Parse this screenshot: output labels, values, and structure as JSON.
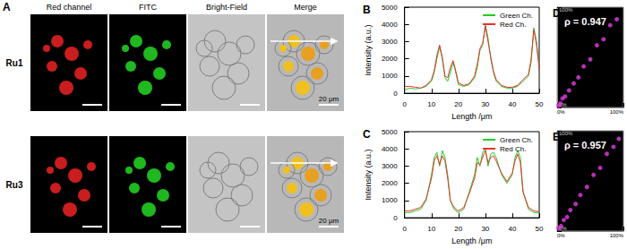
{
  "panel_a": {
    "label": "A",
    "columns": [
      "Red channel",
      "FITC",
      "Bright-Field",
      "Merge"
    ],
    "rows": [
      "Ru1",
      "Ru3"
    ],
    "scale_bar": "20 μm"
  },
  "chart_data": [
    {
      "type": "line",
      "title": "B",
      "x_label": "Length /μm",
      "y_label": "Intensity (a.u.)",
      "x": [
        0,
        2,
        4,
        6,
        8,
        10,
        11,
        12,
        13,
        14,
        15,
        16,
        17,
        18,
        19,
        20,
        22,
        24,
        26,
        27,
        28,
        29,
        30,
        31,
        32,
        33,
        34,
        36,
        38,
        40,
        42,
        44,
        46,
        47,
        48,
        49,
        50
      ],
      "series": [
        {
          "name": "Green Ch.",
          "color": "#22cc22",
          "values": [
            200,
            300,
            250,
            300,
            400,
            700,
            1200,
            2000,
            2700,
            2000,
            900,
            700,
            1200,
            1800,
            1200,
            500,
            400,
            500,
            900,
            1500,
            2500,
            2800,
            4000,
            3200,
            2000,
            1200,
            700,
            400,
            300,
            300,
            400,
            700,
            1000,
            1800,
            3800,
            3000,
            1500
          ]
        },
        {
          "name": "Red Ch.",
          "color": "#e83030",
          "values": [
            400,
            400,
            350,
            300,
            450,
            800,
            1300,
            2200,
            2800,
            2100,
            1000,
            900,
            1500,
            1900,
            1300,
            600,
            450,
            550,
            1000,
            1700,
            2600,
            2900,
            3900,
            3000,
            2100,
            1300,
            800,
            450,
            350,
            350,
            450,
            800,
            1100,
            2000,
            3700,
            2800,
            1400
          ]
        }
      ],
      "xlim": [
        0,
        50
      ],
      "xticks": [
        0,
        10,
        20,
        30,
        40,
        50
      ],
      "ylim": [
        0,
        5000
      ],
      "yticks": [
        0,
        1000,
        2000,
        3000,
        4000,
        5000
      ],
      "legend": "upper right"
    },
    {
      "type": "line",
      "title": "C",
      "x_label": "Length /μm",
      "y_label": "Intensity (a.u.)",
      "x": [
        0,
        2,
        4,
        6,
        8,
        10,
        11,
        12,
        13,
        14,
        15,
        16,
        17,
        18,
        19,
        20,
        22,
        24,
        26,
        27,
        28,
        29,
        30,
        31,
        32,
        33,
        34,
        36,
        38,
        40,
        41,
        42,
        43,
        44,
        46,
        48,
        50
      ],
      "series": [
        {
          "name": "Green Ch.",
          "color": "#22cc22",
          "values": [
            300,
            300,
            400,
            500,
            1000,
            2500,
            3500,
            3800,
            3000,
            3900,
            3500,
            2500,
            1000,
            600,
            400,
            300,
            500,
            1500,
            2500,
            3500,
            3000,
            3800,
            4000,
            3000,
            3700,
            3800,
            3500,
            2500,
            2000,
            2500,
            3500,
            3900,
            3500,
            1500,
            500,
            300,
            300
          ]
        },
        {
          "name": "Red Ch.",
          "color": "#e83030",
          "values": [
            400,
            400,
            500,
            600,
            1100,
            2300,
            3300,
            3600,
            3100,
            3600,
            3300,
            2300,
            1000,
            700,
            500,
            400,
            600,
            1400,
            2300,
            3200,
            3100,
            3500,
            3900,
            3200,
            3500,
            3600,
            3300,
            2600,
            2100,
            2600,
            3300,
            3700,
            3200,
            1500,
            600,
            400,
            350
          ]
        }
      ],
      "xlim": [
        0,
        50
      ],
      "xticks": [
        0,
        10,
        20,
        30,
        40,
        50
      ],
      "ylim": [
        0,
        5000
      ],
      "yticks": [
        0,
        1000,
        2000,
        3000,
        4000,
        5000
      ],
      "legend": "upper right"
    },
    {
      "type": "scatter",
      "title": "D",
      "annotation": "ρ = 0.947",
      "color": "#e23de2",
      "x": [
        2,
        5,
        8,
        12,
        18,
        25,
        32,
        40,
        50,
        60,
        70,
        80,
        90
      ],
      "values": [
        2,
        4,
        9,
        11,
        17,
        24,
        30,
        41,
        48,
        62,
        68,
        82,
        88
      ],
      "xlim": [
        0,
        100
      ],
      "xticks": [
        {
          "value": 0,
          "label": "0%"
        },
        {
          "value": 100,
          "label": "100%"
        }
      ],
      "ylim": [
        0,
        100
      ],
      "yticks": [
        {
          "value": 0,
          "label": "0%"
        },
        {
          "value": 100,
          "label": "100%"
        }
      ]
    },
    {
      "type": "scatter",
      "title": "E",
      "annotation": "ρ = 0.957",
      "color": "#e23de2",
      "x": [
        2,
        6,
        10,
        15,
        20,
        28,
        35,
        45,
        55,
        65,
        75,
        85,
        93
      ],
      "values": [
        3,
        5,
        11,
        14,
        21,
        27,
        36,
        44,
        56,
        63,
        77,
        84,
        92
      ],
      "xlim": [
        0,
        100
      ],
      "xticks": [
        {
          "value": 0,
          "label": "0%"
        },
        {
          "value": 100,
          "label": "100%"
        }
      ],
      "ylim": [
        0,
        100
      ],
      "yticks": [
        {
          "value": 0,
          "label": "0%"
        },
        {
          "value": 100,
          "label": "100%"
        }
      ]
    }
  ]
}
